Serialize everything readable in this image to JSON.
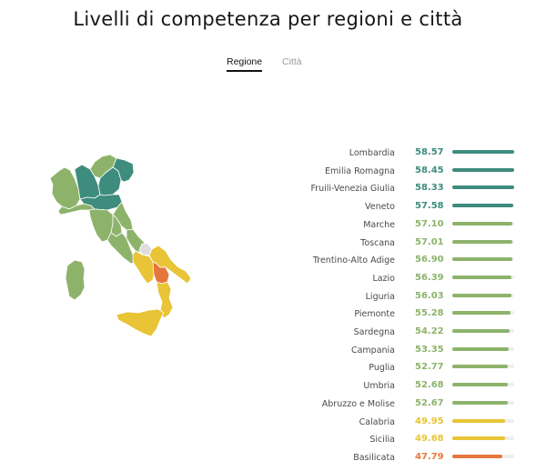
{
  "title": "Livelli di competenza per regioni e città",
  "tabs": [
    {
      "label": "Regione",
      "active": true
    },
    {
      "label": "Città",
      "active": false
    }
  ],
  "colors": {
    "dark_teal": "#3e8c7d",
    "green": "#8db36b",
    "yellow": "#e8c436",
    "orange": "#e6773c",
    "no_data": "#dddddd"
  },
  "chart_data": {
    "type": "bar",
    "orientation": "horizontal",
    "categories": [
      "Lombardia",
      "Emilia Romagna",
      "Fruili-Venezia Giulia",
      "Veneto",
      "Marche",
      "Toscana",
      "Trentino-Alto Adige",
      "Lazio",
      "Liguria",
      "Piemonte",
      "Sardegna",
      "Campania",
      "Puglia",
      "Umbria",
      "Abruzzo e Molise",
      "Calabria",
      "Sicilia",
      "Basilicata"
    ],
    "values": [
      58.57,
      58.45,
      58.33,
      57.58,
      57.1,
      57.01,
      56.9,
      56.39,
      56.03,
      55.28,
      54.22,
      53.35,
      52.77,
      52.68,
      52.67,
      49.95,
      49.68,
      47.79
    ],
    "value_labels": [
      "58.57",
      "58.45",
      "58.33",
      "57.58",
      "57.10",
      "57.01",
      "56.90",
      "56.39",
      "56.03",
      "55.28",
      "54.22",
      "53.35",
      "52.77",
      "52.68",
      "52.67",
      "49.95",
      "49.68",
      "47.79"
    ],
    "bar_colors": [
      "#3e8c7d",
      "#3e8c7d",
      "#3e8c7d",
      "#3e8c7d",
      "#8db36b",
      "#8db36b",
      "#8db36b",
      "#8db36b",
      "#8db36b",
      "#8db36b",
      "#8db36b",
      "#8db36b",
      "#8db36b",
      "#8db36b",
      "#8db36b",
      "#e8c436",
      "#e8c436",
      "#e6773c"
    ],
    "xlim": [
      0,
      58.57
    ]
  }
}
